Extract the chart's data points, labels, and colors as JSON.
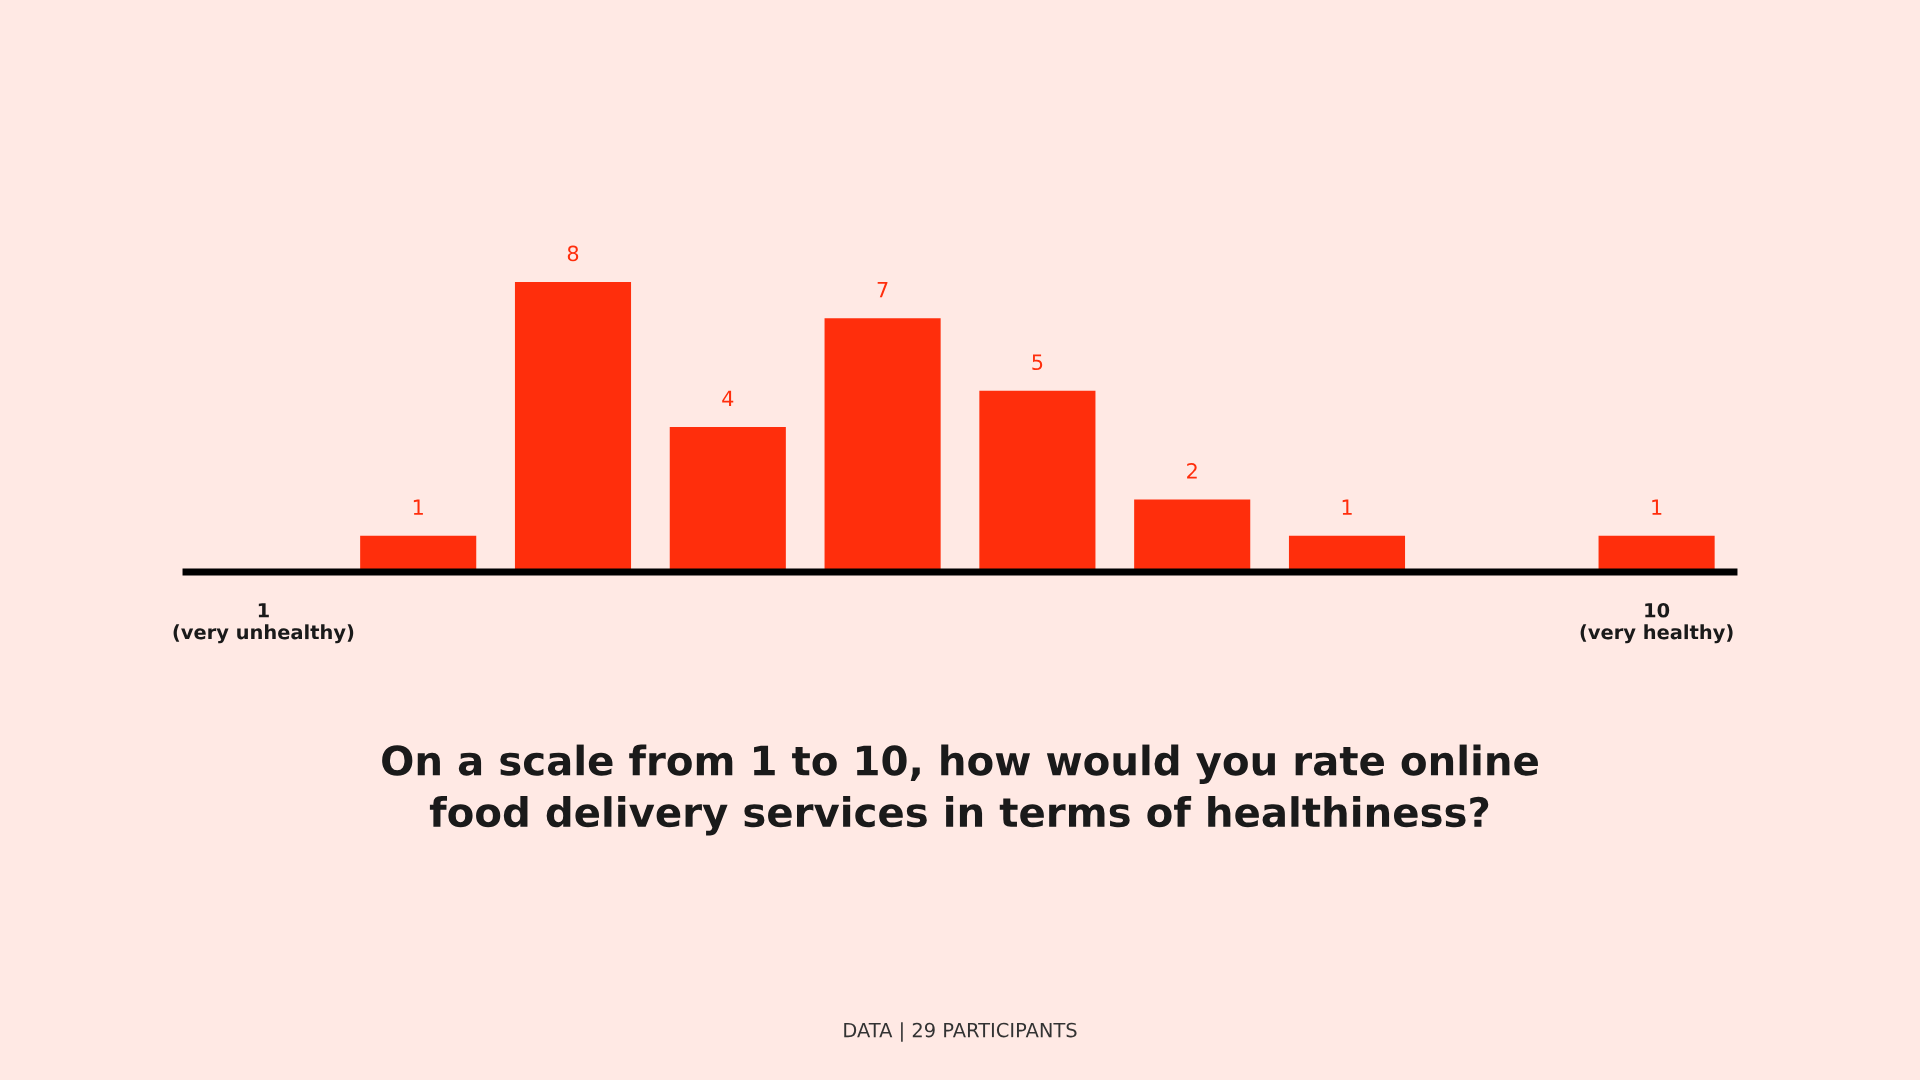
{
  "chart_data": {
    "type": "bar",
    "title": "On a scale from 1 to 10, how would you rate online\nfood delivery services in terms of healthiness?",
    "categories": [
      "1\n(very unhealthy)",
      null,
      null,
      null,
      null,
      null,
      null,
      null,
      null,
      "10\n(very healthy)"
    ],
    "values": [
      0,
      1,
      8,
      4,
      7,
      5,
      2,
      1,
      0,
      1
    ],
    "value_labels": [
      null,
      "1",
      "8",
      "4",
      "7",
      "5",
      "2",
      "1",
      null,
      "1"
    ],
    "color": "#ff2e0c",
    "grid": false,
    "legend": false,
    "annotations": [
      "DATA | 29 PARTICIPANTS"
    ]
  }
}
